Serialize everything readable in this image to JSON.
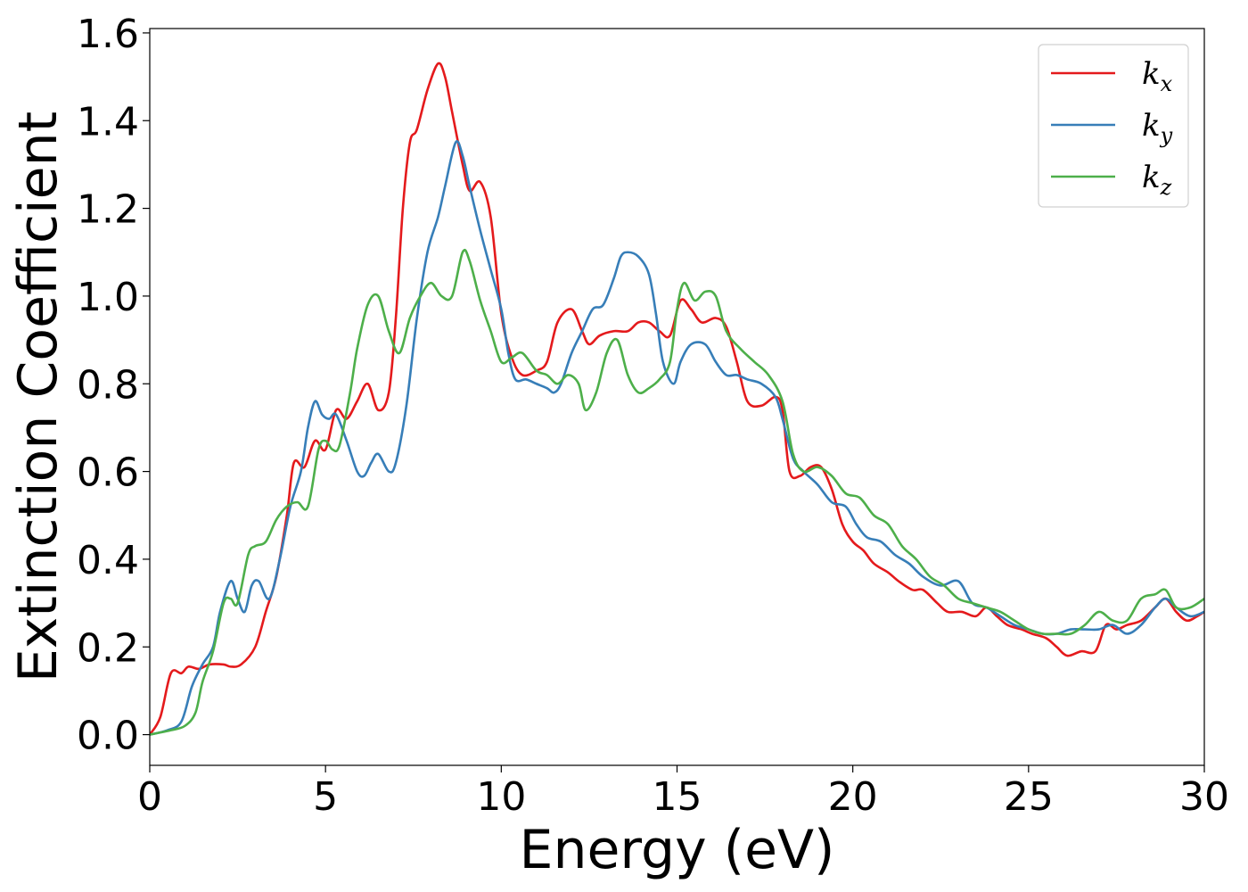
{
  "chart_data": {
    "type": "line",
    "xlabel": "Energy (eV)",
    "ylabel": "Extinction Coefficient",
    "xlim": [
      0,
      30
    ],
    "ylim": [
      -0.07,
      1.61
    ],
    "xticks": [
      0,
      5,
      10,
      15,
      20,
      25,
      30
    ],
    "xtick_labels": [
      "0",
      "5",
      "10",
      "15",
      "20",
      "25",
      "30"
    ],
    "yticks": [
      0.0,
      0.2,
      0.4,
      0.6,
      0.8,
      1.0,
      1.2,
      1.4,
      1.6
    ],
    "ytick_labels": [
      "0.0",
      "0.2",
      "0.4",
      "0.6",
      "0.8",
      "1.0",
      "1.2",
      "1.4",
      "1.6"
    ],
    "grid": false,
    "legend_position": "top-right",
    "series": [
      {
        "name": "k",
        "subscript": "x",
        "color": "#e41a1c",
        "points": [
          [
            0,
            0
          ],
          [
            0.3,
            0.04
          ],
          [
            0.6,
            0.14
          ],
          [
            0.9,
            0.14
          ],
          [
            1.1,
            0.155
          ],
          [
            1.4,
            0.15
          ],
          [
            1.7,
            0.16
          ],
          [
            2.1,
            0.16
          ],
          [
            2.3,
            0.155
          ],
          [
            2.6,
            0.16
          ],
          [
            3.0,
            0.2
          ],
          [
            3.3,
            0.28
          ],
          [
            3.6,
            0.36
          ],
          [
            3.9,
            0.5
          ],
          [
            4.1,
            0.62
          ],
          [
            4.4,
            0.61
          ],
          [
            4.7,
            0.67
          ],
          [
            5.0,
            0.65
          ],
          [
            5.3,
            0.74
          ],
          [
            5.6,
            0.72
          ],
          [
            5.9,
            0.76
          ],
          [
            6.2,
            0.8
          ],
          [
            6.5,
            0.74
          ],
          [
            6.8,
            0.78
          ],
          [
            7.0,
            0.95
          ],
          [
            7.2,
            1.2
          ],
          [
            7.4,
            1.35
          ],
          [
            7.6,
            1.38
          ],
          [
            7.9,
            1.47
          ],
          [
            8.2,
            1.53
          ],
          [
            8.4,
            1.5
          ],
          [
            8.6,
            1.42
          ],
          [
            8.9,
            1.3
          ],
          [
            9.1,
            1.24
          ],
          [
            9.4,
            1.26
          ],
          [
            9.7,
            1.18
          ],
          [
            10.0,
            0.96
          ],
          [
            10.3,
            0.86
          ],
          [
            10.6,
            0.82
          ],
          [
            11.0,
            0.83
          ],
          [
            11.3,
            0.85
          ],
          [
            11.6,
            0.94
          ],
          [
            12.0,
            0.97
          ],
          [
            12.3,
            0.92
          ],
          [
            12.5,
            0.89
          ],
          [
            12.8,
            0.91
          ],
          [
            13.2,
            0.92
          ],
          [
            13.6,
            0.92
          ],
          [
            13.9,
            0.94
          ],
          [
            14.2,
            0.94
          ],
          [
            14.5,
            0.92
          ],
          [
            14.8,
            0.91
          ],
          [
            15.1,
            0.99
          ],
          [
            15.4,
            0.97
          ],
          [
            15.7,
            0.94
          ],
          [
            16.1,
            0.95
          ],
          [
            16.4,
            0.93
          ],
          [
            16.7,
            0.85
          ],
          [
            17.0,
            0.76
          ],
          [
            17.4,
            0.75
          ],
          [
            17.8,
            0.77
          ],
          [
            18.0,
            0.74
          ],
          [
            18.2,
            0.6
          ],
          [
            18.5,
            0.59
          ],
          [
            18.8,
            0.61
          ],
          [
            19.1,
            0.61
          ],
          [
            19.4,
            0.56
          ],
          [
            19.7,
            0.48
          ],
          [
            20.0,
            0.44
          ],
          [
            20.3,
            0.42
          ],
          [
            20.6,
            0.39
          ],
          [
            21.0,
            0.37
          ],
          [
            21.3,
            0.35
          ],
          [
            21.7,
            0.33
          ],
          [
            22.0,
            0.33
          ],
          [
            22.4,
            0.3
          ],
          [
            22.7,
            0.28
          ],
          [
            23.1,
            0.28
          ],
          [
            23.5,
            0.27
          ],
          [
            23.8,
            0.29
          ],
          [
            24.1,
            0.27
          ],
          [
            24.4,
            0.25
          ],
          [
            24.8,
            0.24
          ],
          [
            25.1,
            0.23
          ],
          [
            25.5,
            0.22
          ],
          [
            25.8,
            0.2
          ],
          [
            26.1,
            0.18
          ],
          [
            26.5,
            0.19
          ],
          [
            26.9,
            0.19
          ],
          [
            27.2,
            0.25
          ],
          [
            27.5,
            0.24
          ],
          [
            27.8,
            0.25
          ],
          [
            28.2,
            0.26
          ],
          [
            28.6,
            0.29
          ],
          [
            28.9,
            0.31
          ],
          [
            29.2,
            0.28
          ],
          [
            29.5,
            0.26
          ],
          [
            29.8,
            0.27
          ],
          [
            30.0,
            0.28
          ]
        ]
      },
      {
        "name": "k",
        "subscript": "y",
        "color": "#377eb8",
        "points": [
          [
            0,
            0
          ],
          [
            0.5,
            0.01
          ],
          [
            0.9,
            0.03
          ],
          [
            1.2,
            0.11
          ],
          [
            1.5,
            0.16
          ],
          [
            1.8,
            0.2
          ],
          [
            2.0,
            0.28
          ],
          [
            2.3,
            0.35
          ],
          [
            2.5,
            0.31
          ],
          [
            2.7,
            0.28
          ],
          [
            2.9,
            0.34
          ],
          [
            3.1,
            0.35
          ],
          [
            3.4,
            0.31
          ],
          [
            3.7,
            0.4
          ],
          [
            4.0,
            0.52
          ],
          [
            4.3,
            0.6
          ],
          [
            4.5,
            0.7
          ],
          [
            4.7,
            0.76
          ],
          [
            4.9,
            0.73
          ],
          [
            5.1,
            0.72
          ],
          [
            5.3,
            0.73
          ],
          [
            5.6,
            0.67
          ],
          [
            5.9,
            0.6
          ],
          [
            6.1,
            0.59
          ],
          [
            6.3,
            0.62
          ],
          [
            6.5,
            0.64
          ],
          [
            6.8,
            0.6
          ],
          [
            7.0,
            0.62
          ],
          [
            7.3,
            0.75
          ],
          [
            7.6,
            0.95
          ],
          [
            7.9,
            1.1
          ],
          [
            8.2,
            1.18
          ],
          [
            8.4,
            1.25
          ],
          [
            8.7,
            1.35
          ],
          [
            8.9,
            1.32
          ],
          [
            9.1,
            1.25
          ],
          [
            9.4,
            1.15
          ],
          [
            9.7,
            1.06
          ],
          [
            10.0,
            0.97
          ],
          [
            10.2,
            0.87
          ],
          [
            10.4,
            0.81
          ],
          [
            10.7,
            0.81
          ],
          [
            11.0,
            0.8
          ],
          [
            11.3,
            0.79
          ],
          [
            11.5,
            0.78
          ],
          [
            11.7,
            0.8
          ],
          [
            12.0,
            0.87
          ],
          [
            12.3,
            0.92
          ],
          [
            12.6,
            0.97
          ],
          [
            12.9,
            0.98
          ],
          [
            13.2,
            1.04
          ],
          [
            13.4,
            1.09
          ],
          [
            13.6,
            1.1
          ],
          [
            13.9,
            1.09
          ],
          [
            14.2,
            1.05
          ],
          [
            14.4,
            0.96
          ],
          [
            14.6,
            0.85
          ],
          [
            14.9,
            0.8
          ],
          [
            15.1,
            0.85
          ],
          [
            15.4,
            0.89
          ],
          [
            15.8,
            0.89
          ],
          [
            16.1,
            0.85
          ],
          [
            16.4,
            0.82
          ],
          [
            16.7,
            0.82
          ],
          [
            17.0,
            0.81
          ],
          [
            17.4,
            0.8
          ],
          [
            17.8,
            0.77
          ],
          [
            18.0,
            0.72
          ],
          [
            18.3,
            0.63
          ],
          [
            18.6,
            0.6
          ],
          [
            19.0,
            0.57
          ],
          [
            19.4,
            0.53
          ],
          [
            19.8,
            0.52
          ],
          [
            20.1,
            0.48
          ],
          [
            20.4,
            0.45
          ],
          [
            20.8,
            0.44
          ],
          [
            21.2,
            0.41
          ],
          [
            21.6,
            0.39
          ],
          [
            22.0,
            0.36
          ],
          [
            22.5,
            0.34
          ],
          [
            23.0,
            0.35
          ],
          [
            23.4,
            0.3
          ],
          [
            23.8,
            0.29
          ],
          [
            24.2,
            0.27
          ],
          [
            24.6,
            0.25
          ],
          [
            25.0,
            0.24
          ],
          [
            25.4,
            0.23
          ],
          [
            25.8,
            0.23
          ],
          [
            26.2,
            0.24
          ],
          [
            26.6,
            0.24
          ],
          [
            27.0,
            0.24
          ],
          [
            27.4,
            0.25
          ],
          [
            27.8,
            0.23
          ],
          [
            28.2,
            0.25
          ],
          [
            28.6,
            0.29
          ],
          [
            28.9,
            0.31
          ],
          [
            29.2,
            0.29
          ],
          [
            29.6,
            0.27
          ],
          [
            30.0,
            0.28
          ]
        ]
      },
      {
        "name": "k",
        "subscript": "z",
        "color": "#4daf4a",
        "points": [
          [
            0,
            0
          ],
          [
            0.6,
            0.01
          ],
          [
            1.0,
            0.02
          ],
          [
            1.3,
            0.05
          ],
          [
            1.5,
            0.12
          ],
          [
            1.8,
            0.19
          ],
          [
            2.1,
            0.3
          ],
          [
            2.3,
            0.31
          ],
          [
            2.5,
            0.3
          ],
          [
            2.8,
            0.41
          ],
          [
            3.0,
            0.43
          ],
          [
            3.3,
            0.44
          ],
          [
            3.6,
            0.49
          ],
          [
            3.9,
            0.52
          ],
          [
            4.2,
            0.53
          ],
          [
            4.5,
            0.52
          ],
          [
            4.8,
            0.65
          ],
          [
            5.0,
            0.67
          ],
          [
            5.2,
            0.65
          ],
          [
            5.4,
            0.66
          ],
          [
            5.7,
            0.78
          ],
          [
            5.9,
            0.88
          ],
          [
            6.2,
            0.98
          ],
          [
            6.5,
            1.0
          ],
          [
            6.8,
            0.92
          ],
          [
            7.1,
            0.87
          ],
          [
            7.4,
            0.95
          ],
          [
            7.7,
            1.0
          ],
          [
            8.0,
            1.03
          ],
          [
            8.3,
            1.0
          ],
          [
            8.6,
            1.0
          ],
          [
            8.9,
            1.1
          ],
          [
            9.1,
            1.08
          ],
          [
            9.4,
            0.99
          ],
          [
            9.7,
            0.92
          ],
          [
            10.0,
            0.85
          ],
          [
            10.3,
            0.86
          ],
          [
            10.6,
            0.87
          ],
          [
            11.0,
            0.83
          ],
          [
            11.3,
            0.82
          ],
          [
            11.6,
            0.8
          ],
          [
            11.9,
            0.82
          ],
          [
            12.2,
            0.8
          ],
          [
            12.4,
            0.74
          ],
          [
            12.7,
            0.78
          ],
          [
            13.0,
            0.87
          ],
          [
            13.3,
            0.9
          ],
          [
            13.6,
            0.82
          ],
          [
            13.9,
            0.78
          ],
          [
            14.2,
            0.79
          ],
          [
            14.5,
            0.81
          ],
          [
            14.8,
            0.85
          ],
          [
            15.0,
            0.97
          ],
          [
            15.2,
            1.03
          ],
          [
            15.5,
            0.99
          ],
          [
            15.8,
            1.01
          ],
          [
            16.1,
            1.0
          ],
          [
            16.4,
            0.92
          ],
          [
            16.8,
            0.88
          ],
          [
            17.2,
            0.85
          ],
          [
            17.6,
            0.82
          ],
          [
            18.0,
            0.76
          ],
          [
            18.3,
            0.64
          ],
          [
            18.6,
            0.6
          ],
          [
            19.0,
            0.61
          ],
          [
            19.4,
            0.59
          ],
          [
            19.8,
            0.55
          ],
          [
            20.2,
            0.54
          ],
          [
            20.6,
            0.5
          ],
          [
            21.0,
            0.48
          ],
          [
            21.4,
            0.43
          ],
          [
            21.8,
            0.4
          ],
          [
            22.2,
            0.36
          ],
          [
            22.6,
            0.34
          ],
          [
            23.0,
            0.31
          ],
          [
            23.4,
            0.3
          ],
          [
            23.8,
            0.29
          ],
          [
            24.2,
            0.28
          ],
          [
            24.6,
            0.26
          ],
          [
            25.0,
            0.24
          ],
          [
            25.4,
            0.23
          ],
          [
            25.8,
            0.23
          ],
          [
            26.2,
            0.23
          ],
          [
            26.6,
            0.25
          ],
          [
            27.0,
            0.28
          ],
          [
            27.4,
            0.26
          ],
          [
            27.8,
            0.26
          ],
          [
            28.2,
            0.31
          ],
          [
            28.6,
            0.32
          ],
          [
            28.9,
            0.33
          ],
          [
            29.2,
            0.29
          ],
          [
            29.6,
            0.29
          ],
          [
            30.0,
            0.31
          ]
        ]
      }
    ]
  }
}
